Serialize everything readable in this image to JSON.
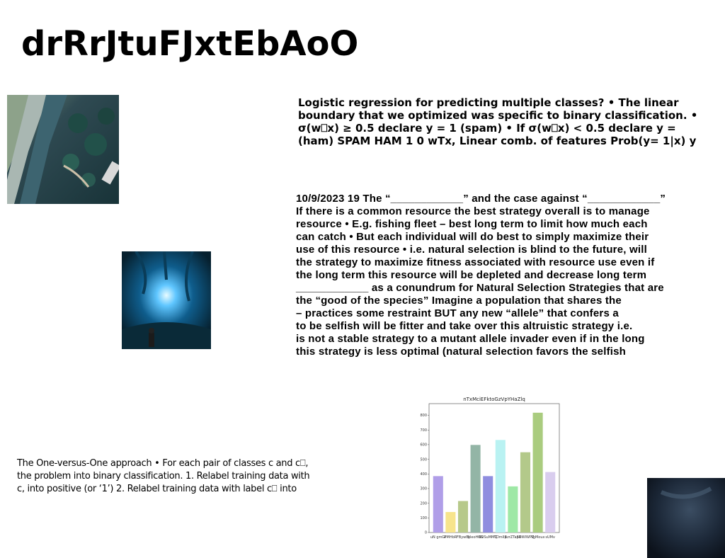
{
  "slide": {
    "title": "drRrJtuFJxtEbAoO"
  },
  "images": {
    "coast": "aerial-coastline-photo",
    "forest": "glowing-blue-tree-photo",
    "night": "dark-night-sky-photo"
  },
  "text_blocks": {
    "logistic": [
      "Logistic regression for predicting multiple classes? • The linear",
      "boundary that we optimized was specific to binary classification. •",
      "σ(w⎕x) ≥ 0.5 declare y = 1 (spam) • If σ(w⎕x) < 0.5 declare y =",
      "(ham) SPAM HAM 1 0 wTx, Linear comb. of features Prob(y= 1|x) y"
    ],
    "natural_selection": [
      "10/9/2023 19 The “____________” and the case against “____________”",
      "If there is a common resource the best strategy overall is to manage",
      "resource • E.g. fishing fleet – best long term to limit how much each",
      "can catch • But each individual will do best to simply maximize their",
      "use of this resource • i.e. natural selection is blind to the future, will",
      "the strategy to maximize fitness associated with resource use even if",
      "the long term this resource will be depleted and decrease long term",
      "____________ as a conundrum for Natural Selection Strategies that are",
      "the “good of the species” Imagine a population that shares the",
      "– practices some restraint BUT any new “allele” that confers a",
      "to be selfish will be fitter and take over this altruistic strategy i.e.",
      "is not a stable strategy to a mutant allele invader even if in the long",
      "this strategy is less optimal (natural selection favors the selfish"
    ],
    "one_vs_one": [
      "The One-versus-One approach • For each pair of classes c and c⎕,",
      "the problem into binary classification. 1. Relabel training data with",
      "c, into positive (or ‘1’) 2. Relabel training data with label c⎕ into"
    ]
  },
  "chart_data": {
    "type": "bar",
    "title": "nTxMciEFktoGzVpYHaZlq",
    "categories": [
      "uN gmGi",
      "PMHbR",
      "FBywBj",
      "bleoHGS",
      "BOSuMMQ",
      "TDmIlp",
      "RzrZTapX",
      "SDWIWPZ",
      "YgMoux",
      "sUMv"
    ],
    "values": [
      385,
      140,
      215,
      598,
      385,
      632,
      315,
      548,
      818,
      413
    ],
    "colors": [
      "#b09ee8",
      "#f7e48c",
      "#b7c98a",
      "#93b5a6",
      "#8f8ddf",
      "#b9f2f2",
      "#9ee8a6",
      "#b3c98a",
      "#aacc7f",
      "#d9cdee"
    ],
    "ylim": [
      0,
      880
    ],
    "yticks": [
      0,
      100,
      200,
      300,
      400,
      500,
      600,
      700,
      800
    ]
  }
}
